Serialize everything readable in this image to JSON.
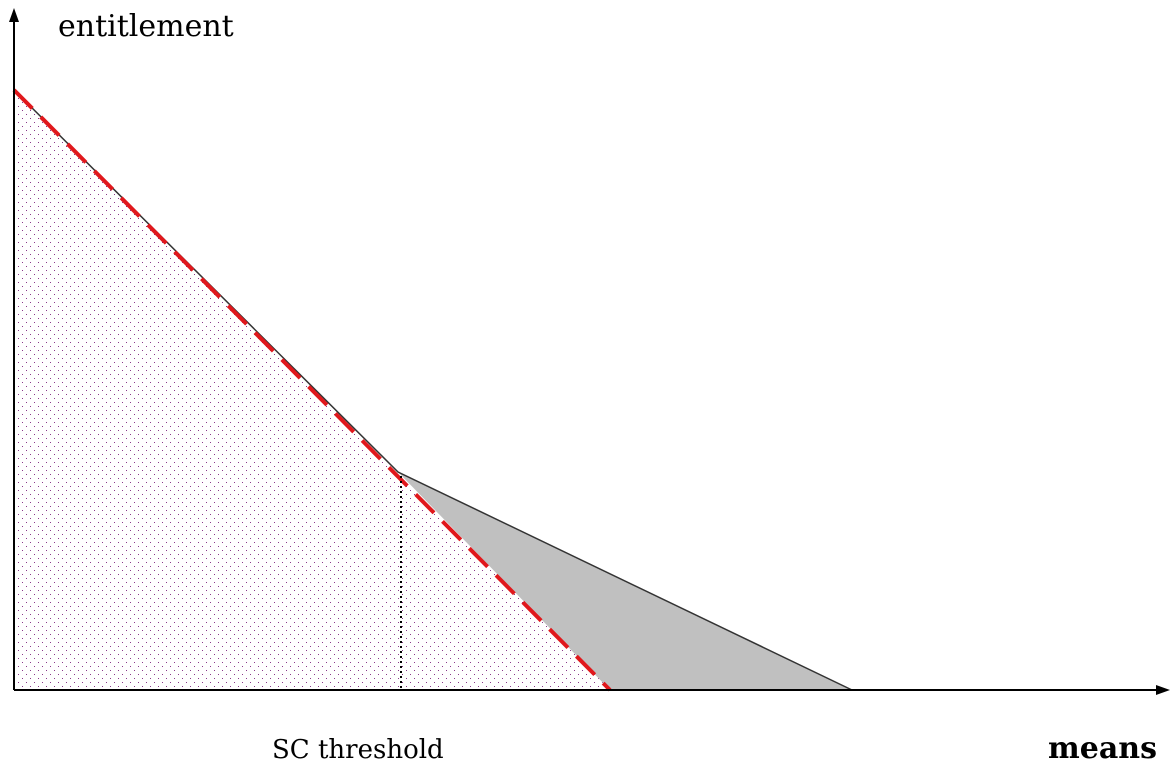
{
  "labels": {
    "y_axis": "entitlement",
    "threshold": "SC threshold",
    "x_axis": "means"
  }
}
